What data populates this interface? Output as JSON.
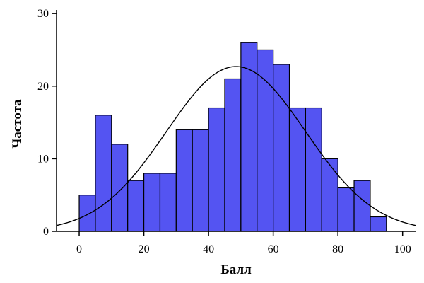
{
  "chart_data": {
    "type": "bar",
    "title": "",
    "xlabel": "Балл",
    "ylabel": "Частота",
    "xlim": [
      -7,
      104
    ],
    "ylim": [
      0,
      30.5
    ],
    "x_ticks": [
      0,
      20,
      40,
      60,
      80,
      100
    ],
    "y_ticks": [
      0,
      10,
      20,
      30
    ],
    "bin_width": 5,
    "bins": [
      {
        "x0": 0,
        "x1": 5,
        "value": 5
      },
      {
        "x0": 5,
        "x1": 10,
        "value": 16
      },
      {
        "x0": 10,
        "x1": 15,
        "value": 12
      },
      {
        "x0": 15,
        "x1": 20,
        "value": 7
      },
      {
        "x0": 20,
        "x1": 25,
        "value": 8
      },
      {
        "x0": 25,
        "x1": 30,
        "value": 8
      },
      {
        "x0": 30,
        "x1": 35,
        "value": 14
      },
      {
        "x0": 35,
        "x1": 40,
        "value": 14
      },
      {
        "x0": 40,
        "x1": 45,
        "value": 17
      },
      {
        "x0": 45,
        "x1": 50,
        "value": 21
      },
      {
        "x0": 50,
        "x1": 55,
        "value": 26
      },
      {
        "x0": 55,
        "x1": 60,
        "value": 25
      },
      {
        "x0": 60,
        "x1": 65,
        "value": 23
      },
      {
        "x0": 65,
        "x1": 70,
        "value": 17
      },
      {
        "x0": 70,
        "x1": 75,
        "value": 17
      },
      {
        "x0": 75,
        "x1": 80,
        "value": 10
      },
      {
        "x0": 80,
        "x1": 85,
        "value": 6
      },
      {
        "x0": 85,
        "x1": 90,
        "value": 7
      },
      {
        "x0": 90,
        "x1": 95,
        "value": 2
      }
    ],
    "normal_curve": {
      "mean": 48.5,
      "sd": 21.5,
      "peak": 22.7
    },
    "bar_color": "#5454f2",
    "bar_edge_color": "#000000",
    "curve_color": "#000000",
    "grid": false,
    "legend": "none"
  }
}
